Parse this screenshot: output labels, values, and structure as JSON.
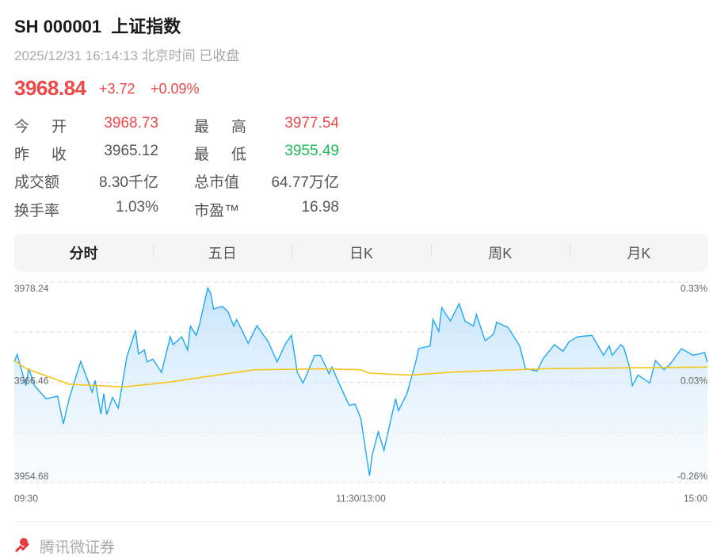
{
  "header": {
    "title": "SH 000001  上证指数",
    "subtitle": "2025/12/31 16:14:13 北京时间 已收盘",
    "price": "3968.84",
    "change": "+3.72",
    "change_pct": "+0.09%"
  },
  "stats": [
    {
      "label": "今开",
      "value": "3968.73",
      "color": "red"
    },
    {
      "label": "最高",
      "value": "3977.54",
      "color": "red"
    },
    {
      "label": "昨收",
      "value": "3965.12",
      "color": "neutral"
    },
    {
      "label": "最低",
      "value": "3955.49",
      "color": "green"
    },
    {
      "label": "成交额",
      "value": "8.30千亿",
      "color": "neutral"
    },
    {
      "label": "总市值",
      "value": "64.77万亿",
      "color": "neutral"
    },
    {
      "label": "换手率",
      "value": "1.03%",
      "color": "neutral"
    },
    {
      "label": "市盈™",
      "value": "16.98",
      "color": "neutral"
    }
  ],
  "tabs": [
    {
      "label": "分时",
      "active": true
    },
    {
      "label": "五日"
    },
    {
      "label": "日K"
    },
    {
      "label": "周K"
    },
    {
      "label": "月K"
    }
  ],
  "colors": {
    "up": "#f04848",
    "down": "#1db954",
    "price_line": "#1ea7f5",
    "avg_line": "#f5c518"
  },
  "chart_data": {
    "type": "line",
    "ylim": [
      3954.68,
      3978.24
    ],
    "y_tick_labels": [
      "3978.24",
      "3966.46",
      "3954.68"
    ],
    "right_tick_labels": [
      "0.33%",
      "0.03%",
      "-0.26%"
    ],
    "x_tick_labels": [
      "09:30",
      "11:30/13:00",
      "15:00"
    ],
    "grid": true,
    "series": [
      {
        "key": "price",
        "points": [
          [
            "09:30",
            3968.87
          ],
          [
            "09:31",
            3969.74
          ],
          [
            "09:34",
            3966.07
          ],
          [
            "09:35",
            3968.09
          ],
          [
            "09:37",
            3966.07
          ],
          [
            "09:41",
            3964.52
          ],
          [
            "09:45",
            3964.83
          ],
          [
            "09:47",
            3961.57
          ],
          [
            "09:49",
            3964.52
          ],
          [
            "09:53",
            3968.93
          ],
          [
            "09:57",
            3965.3
          ],
          [
            "09:58",
            3966.69
          ],
          [
            "10:00",
            3962.72
          ],
          [
            "10:01",
            3965.14
          ],
          [
            "10:02",
            3962.66
          ],
          [
            "10:04",
            3964.68
          ],
          [
            "10:06",
            3963.43
          ],
          [
            "10:09",
            3969.49
          ],
          [
            "10:12",
            3972.59
          ],
          [
            "10:13",
            3969.8
          ],
          [
            "10:15",
            3970.26
          ],
          [
            "10:16",
            3968.87
          ],
          [
            "10:18",
            3969.18
          ],
          [
            "10:21",
            3967.62
          ],
          [
            "10:24",
            3971.81
          ],
          [
            "10:25",
            3970.88
          ],
          [
            "10:28",
            3971.81
          ],
          [
            "10:30",
            3970.26
          ],
          [
            "10:31",
            3973.06
          ],
          [
            "10:33",
            3971.97
          ],
          [
            "10:34",
            3973.06
          ],
          [
            "10:37",
            3977.54
          ],
          [
            "10:38",
            3976.94
          ],
          [
            "10:39",
            3975.07
          ],
          [
            "10:42",
            3975.38
          ],
          [
            "10:44",
            3974.76
          ],
          [
            "10:46",
            3973.06
          ],
          [
            "10:47",
            3973.83
          ],
          [
            "10:51",
            3971.04
          ],
          [
            "10:54",
            3973.12
          ],
          [
            "10:58",
            3971.19
          ],
          [
            "11:01",
            3968.87
          ],
          [
            "11:04",
            3971.04
          ],
          [
            "11:06",
            3971.97
          ],
          [
            "11:08",
            3967.62
          ],
          [
            "11:10",
            3966.38
          ],
          [
            "11:14",
            3969.64
          ],
          [
            "11:16",
            3969.64
          ],
          [
            "11:19",
            3967.47
          ],
          [
            "11:20",
            3968.25
          ],
          [
            "11:23",
            3965.92
          ],
          [
            "11:26",
            3963.74
          ],
          [
            "11:28",
            3963.9
          ],
          [
            "11:30",
            3962.19
          ],
          [
            "13:03",
            3955.49
          ],
          [
            "13:04",
            3958.0
          ],
          [
            "13:06",
            3960.64
          ],
          [
            "13:08",
            3958.47
          ],
          [
            "13:12",
            3964.52
          ],
          [
            "13:13",
            3963.12
          ],
          [
            "13:16",
            3965.14
          ],
          [
            "13:19",
            3968.87
          ],
          [
            "13:20",
            3970.42
          ],
          [
            "13:24",
            3970.73
          ],
          [
            "13:25",
            3973.83
          ],
          [
            "13:27",
            3972.44
          ],
          [
            "13:28",
            3975.23
          ],
          [
            "13:31",
            3973.68
          ],
          [
            "13:34",
            3975.7
          ],
          [
            "13:36",
            3973.68
          ],
          [
            "13:39",
            3973.06
          ],
          [
            "13:40",
            3974.45
          ],
          [
            "13:43",
            3971.35
          ],
          [
            "13:46",
            3972.12
          ],
          [
            "13:47",
            3973.52
          ],
          [
            "13:51",
            3972.9
          ],
          [
            "13:55",
            3970.73
          ],
          [
            "13:57",
            3968.09
          ],
          [
            "14:01",
            3967.78
          ],
          [
            "14:03",
            3969.18
          ],
          [
            "14:07",
            3970.88
          ],
          [
            "14:10",
            3970.11
          ],
          [
            "14:12",
            3971.19
          ],
          [
            "14:15",
            3971.81
          ],
          [
            "14:20",
            3971.97
          ],
          [
            "14:24",
            3969.64
          ],
          [
            "14:26",
            3970.73
          ],
          [
            "14:27",
            3969.64
          ],
          [
            "14:30",
            3970.88
          ],
          [
            "14:31",
            3970.57
          ],
          [
            "14:33",
            3968.25
          ],
          [
            "14:34",
            3966.07
          ],
          [
            "14:36",
            3967.31
          ],
          [
            "14:40",
            3966.38
          ],
          [
            "14:42",
            3969.02
          ],
          [
            "14:45",
            3967.93
          ],
          [
            "14:47",
            3968.56
          ],
          [
            "14:51",
            3970.42
          ],
          [
            "14:55",
            3969.64
          ],
          [
            "14:59",
            3969.95
          ],
          [
            "15:00",
            3968.84
          ]
        ]
      },
      {
        "key": "average",
        "points": [
          [
            "09:30",
            3969.02
          ],
          [
            "09:34",
            3968.09
          ],
          [
            "09:49",
            3966.23
          ],
          [
            "10:08",
            3965.92
          ],
          [
            "10:23",
            3966.45
          ],
          [
            "10:34",
            3967.0
          ],
          [
            "10:53",
            3967.93
          ],
          [
            "11:16",
            3968.03
          ],
          [
            "11:30",
            3967.93
          ],
          [
            "13:03",
            3967.53
          ],
          [
            "13:17",
            3967.31
          ],
          [
            "13:33",
            3967.69
          ],
          [
            "14:04",
            3968.06
          ],
          [
            "15:00",
            3968.25
          ]
        ]
      }
    ]
  },
  "footer": {
    "brand": "腾讯微证券"
  }
}
